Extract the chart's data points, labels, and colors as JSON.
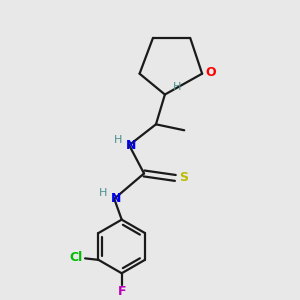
{
  "bg_color": "#e8e8e8",
  "bond_color": "#1a1a1a",
  "o_color": "#ff0000",
  "n_teal_color": "#4a9090",
  "n_blue_color": "#0000ee",
  "s_color": "#bbbb00",
  "cl_color": "#00bb00",
  "f_color": "#bb00bb",
  "line_width": 1.6,
  "figsize": [
    3.0,
    3.0
  ],
  "dpi": 100,
  "xlim": [
    0,
    10
  ],
  "ylim": [
    0,
    10
  ]
}
